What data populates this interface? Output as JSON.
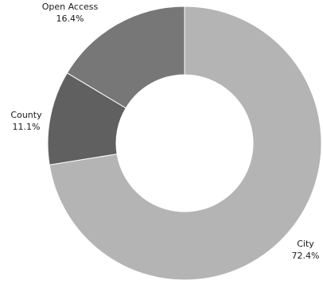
{
  "chart_data": {
    "type": "pie",
    "variant": "donut",
    "slices": [
      {
        "label": "City",
        "percent_label": "72.4%",
        "value": 72.4,
        "color": "#b4b4b4"
      },
      {
        "label": "County",
        "percent_label": "11.1%",
        "value": 11.1,
        "color": "#606060"
      },
      {
        "label": "Open Access",
        "percent_label": "16.4%",
        "value": 16.4,
        "color": "#777777"
      }
    ],
    "start": "12 o'clock",
    "direction": "clockwise",
    "legend": "none"
  }
}
